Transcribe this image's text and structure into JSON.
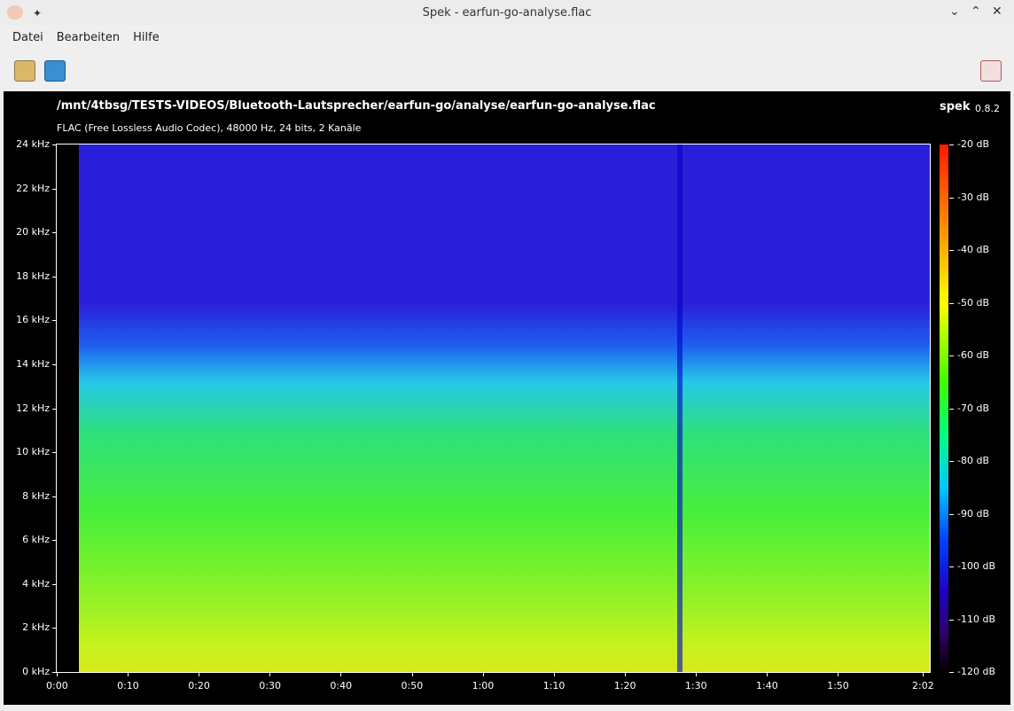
{
  "window": {
    "title": "Spek - earfun-go-analyse.flac"
  },
  "menu": [
    "Datei",
    "Bearbeiten",
    "Hilfe"
  ],
  "header": {
    "path": "/mnt/4tbsg/TESTS-VIDEOS/Bluetooth-Lautsprecher/earfun-go/analyse/earfun-go-analyse.flac",
    "info": "FLAC (Free Lossless Audio Codec), 48000 Hz, 24 bits, 2 Kanäle",
    "app": "spek",
    "version": "0.8.2"
  },
  "frequency_labels": [
    "24 kHz",
    "22 kHz",
    "20 kHz",
    "18 kHz",
    "16 kHz",
    "14 kHz",
    "12 kHz",
    "10 kHz",
    "8 kHz",
    "6 kHz",
    "4 kHz",
    "2 kHz",
    "0 kHz"
  ],
  "time_labels": [
    "0:00",
    "0:10",
    "0:20",
    "0:30",
    "0:40",
    "0:50",
    "1:00",
    "1:10",
    "1:20",
    "1:30",
    "1:40",
    "1:50",
    "2:02"
  ],
  "level_labels": [
    "-20 dB",
    "-30 dB",
    "-40 dB",
    "-50 dB",
    "-60 dB",
    "-70 dB",
    "-80 dB",
    "-90 dB",
    "-100 dB",
    "-110 dB",
    "-120 dB"
  ]
}
